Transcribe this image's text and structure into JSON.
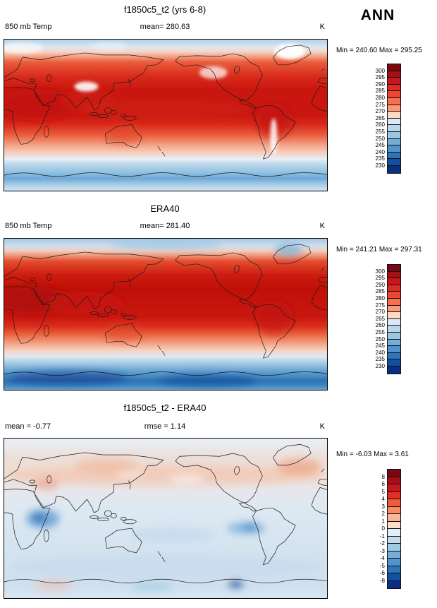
{
  "figure": {
    "season_label": "ANN",
    "background": "#ffffff",
    "frame_color": "#000000"
  },
  "chart_data": [
    {
      "type": "heatmap",
      "panel": "top",
      "title": "f1850c5_t2 (yrs 6-8)",
      "variable": "850 mb Temp",
      "units": "K",
      "mean": 280.63,
      "mean_text": "mean= 280.63",
      "min": 240.6,
      "max": 295.25,
      "stats_text": "Min = 240.60 Max = 295.25",
      "projection": "global cylindrical equidistant, lon 0-360, lat 90N-90S",
      "colorbar": {
        "levels": [
          300,
          295,
          290,
          285,
          280,
          275,
          270,
          265,
          260,
          255,
          250,
          245,
          240,
          235,
          230
        ],
        "colors": [
          "#7a0711",
          "#a50f15",
          "#c9161c",
          "#dd2c22",
          "#ec4733",
          "#f76f4d",
          "#fb9877",
          "#fcd9c4",
          "#dbe9f6",
          "#bcd7ec",
          "#9ac8e3",
          "#73add8",
          "#4f94ca",
          "#2e75b6",
          "#1250a4",
          "#0a2f80"
        ]
      }
    },
    {
      "type": "heatmap",
      "panel": "middle",
      "title": "ERA40",
      "variable": "850 mb Temp",
      "units": "K",
      "mean": 281.4,
      "mean_text": "mean= 281.40",
      "min": 241.21,
      "max": 297.31,
      "stats_text": "Min = 241.21 Max = 297.31",
      "projection": "global cylindrical equidistant, lon 0-360, lat 90N-90S",
      "colorbar": {
        "levels": [
          300,
          295,
          290,
          285,
          280,
          275,
          270,
          265,
          260,
          255,
          250,
          245,
          240,
          235,
          230
        ],
        "colors": [
          "#7a0711",
          "#a50f15",
          "#c9161c",
          "#dd2c22",
          "#ec4733",
          "#f76f4d",
          "#fb9877",
          "#fcd9c4",
          "#dbe9f6",
          "#bcd7ec",
          "#9ac8e3",
          "#73add8",
          "#4f94ca",
          "#2e75b6",
          "#1250a4",
          "#0a2f80"
        ]
      }
    },
    {
      "type": "heatmap",
      "panel": "bottom",
      "title": "f1850c5_t2 - ERA40",
      "units": "K",
      "mean": -0.77,
      "mean_text": "mean = -0.77",
      "rmse": 1.14,
      "rmse_text": "rmse =  1.14",
      "min": -6.03,
      "max": 3.61,
      "stats_text": "Min = -6.03 Max =  3.61",
      "projection": "global cylindrical equidistant, lon 0-360, lat 90N-90S",
      "colorbar": {
        "levels": [
          8,
          6,
          5,
          4,
          3,
          2,
          1,
          0,
          -1,
          -2,
          -3,
          -4,
          -5,
          -6,
          -8
        ],
        "colors": [
          "#7a0711",
          "#a50f15",
          "#c9161c",
          "#e03127",
          "#ef5b3c",
          "#f98a62",
          "#fcb79b",
          "#fcdccb",
          "#e4eef7",
          "#c3dbee",
          "#9fcae2",
          "#75aed8",
          "#4f94ca",
          "#2e75b6",
          "#1250a4",
          "#0a2f80"
        ]
      }
    }
  ]
}
